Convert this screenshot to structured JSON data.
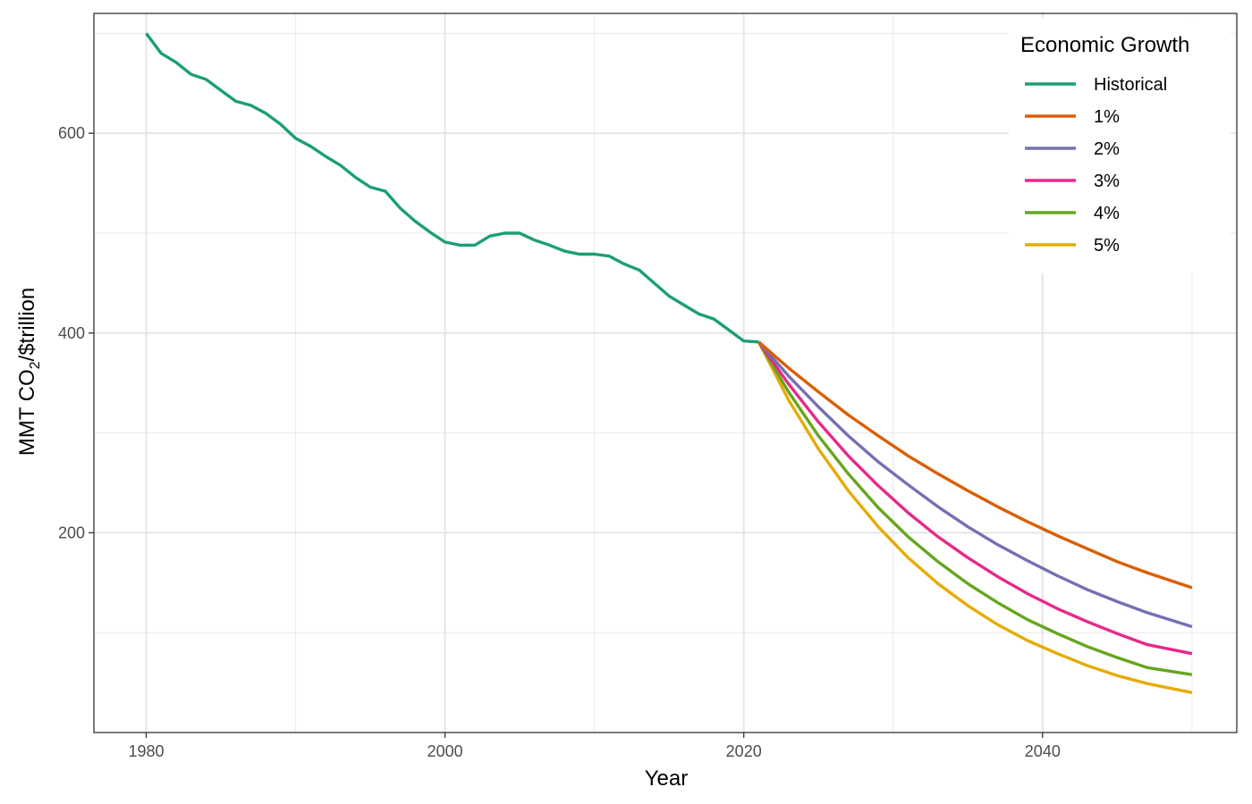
{
  "chart_data": {
    "type": "line",
    "title": "",
    "xlabel": "Year",
    "ylabel_main": "MMT CO",
    "ylabel_sub": "2",
    "ylabel_unit": "/$trillion",
    "xlim": [
      1976.5,
      2053
    ],
    "ylim": [
      0,
      720
    ],
    "x_ticks": [
      1980,
      2000,
      2020,
      2040
    ],
    "y_ticks": [
      200,
      400,
      600
    ],
    "x_minor": [
      1990,
      2010,
      2030,
      2050
    ],
    "y_minor": [
      100,
      300,
      500,
      700
    ],
    "grid": true,
    "legend_position": "top-right",
    "legend_title": "Economic Growth",
    "colors": {
      "Historical": "#1b9e77",
      "1%": "#d95f02",
      "2%": "#7570b3",
      "3%": "#e7298a",
      "4%": "#66a61e",
      "5%": "#e6ab02"
    },
    "series": [
      {
        "name": "Historical",
        "x": [
          1980,
          1981,
          1982,
          1983,
          1984,
          1985,
          1986,
          1987,
          1988,
          1989,
          1990,
          1991,
          1992,
          1993,
          1994,
          1995,
          1996,
          1997,
          1998,
          1999,
          2000,
          2001,
          2002,
          2003,
          2004,
          2005,
          2006,
          2007,
          2008,
          2009,
          2010,
          2011,
          2012,
          2013,
          2014,
          2015,
          2016,
          2017,
          2018,
          2019,
          2020,
          2021
        ],
        "y": [
          700,
          680,
          671,
          659,
          654,
          643,
          632,
          628,
          620,
          609,
          595,
          587,
          577,
          568,
          556,
          546,
          542,
          525,
          512,
          501,
          491,
          488,
          488,
          497,
          500,
          500,
          493,
          488,
          482,
          479,
          479,
          477,
          469,
          463,
          450,
          437,
          428,
          419,
          414,
          403,
          392,
          391
        ]
      },
      {
        "name": "1%",
        "x": [
          2021,
          2023,
          2025,
          2027,
          2029,
          2031,
          2033,
          2035,
          2037,
          2039,
          2041,
          2043,
          2045,
          2047,
          2050
        ],
        "y": [
          391,
          365,
          341,
          318,
          297,
          277,
          259,
          242,
          226,
          211,
          197,
          184,
          171,
          160,
          145
        ]
      },
      {
        "name": "2%",
        "x": [
          2021,
          2023,
          2025,
          2027,
          2029,
          2031,
          2033,
          2035,
          2037,
          2039,
          2041,
          2043,
          2045,
          2047,
          2050
        ],
        "y": [
          391,
          357,
          326,
          297,
          271,
          248,
          226,
          206,
          188,
          172,
          157,
          143,
          131,
          120,
          106
        ]
      },
      {
        "name": "3%",
        "x": [
          2021,
          2023,
          2025,
          2027,
          2029,
          2031,
          2033,
          2035,
          2037,
          2039,
          2041,
          2043,
          2045,
          2047,
          2050
        ],
        "y": [
          391,
          349,
          311,
          277,
          247,
          220,
          196,
          175,
          156,
          139,
          124,
          111,
          99,
          88,
          79
        ]
      },
      {
        "name": "4%",
        "x": [
          2021,
          2023,
          2025,
          2027,
          2029,
          2031,
          2033,
          2035,
          2037,
          2039,
          2041,
          2043,
          2045,
          2047,
          2050
        ],
        "y": [
          391,
          341,
          297,
          259,
          225,
          196,
          171,
          149,
          130,
          113,
          99,
          86,
          75,
          65,
          58
        ]
      },
      {
        "name": "5%",
        "x": [
          2021,
          2023,
          2025,
          2027,
          2029,
          2031,
          2033,
          2035,
          2037,
          2039,
          2041,
          2043,
          2045,
          2047,
          2050
        ],
        "y": [
          391,
          333,
          284,
          242,
          206,
          175,
          149,
          127,
          108,
          92,
          79,
          67,
          57,
          49,
          40
        ]
      }
    ]
  }
}
